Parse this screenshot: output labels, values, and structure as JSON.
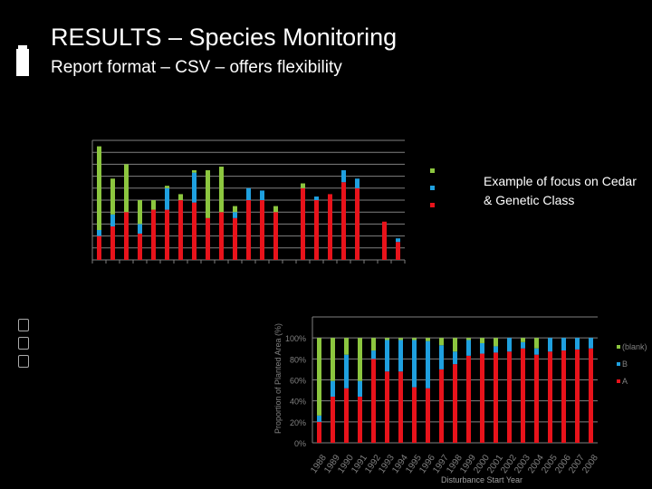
{
  "slide": {
    "title": "RESULTS – Species Monitoring",
    "subtitle": "Report format – CSV – offers flexibility",
    "focus_note": "Example of focus on Cedar & Genetic Class"
  },
  "colors": {
    "A": "#e8131b",
    "B": "#1fa0df",
    "blank": "#8cc63f",
    "grid": "#808080"
  },
  "chart_data": [
    {
      "type": "bar",
      "stacked": true,
      "title": "",
      "xlabel": "",
      "ylabel": "",
      "ylim": [
        0,
        100
      ],
      "grid": true,
      "legend": "right",
      "legend_labels_visible": false,
      "series": [
        {
          "name": "A",
          "values": [
            20,
            28,
            40,
            22,
            42,
            42,
            50,
            48,
            35,
            40,
            35,
            50,
            50,
            40,
            0,
            60,
            50,
            55,
            65,
            60,
            0,
            32,
            15
          ]
        },
        {
          "name": "B",
          "values": [
            5,
            10,
            0,
            8,
            0,
            18,
            0,
            25,
            0,
            0,
            5,
            10,
            8,
            0,
            0,
            0,
            3,
            0,
            10,
            8,
            0,
            0,
            3
          ]
        },
        {
          "name": "(blank)",
          "values": [
            70,
            30,
            40,
            20,
            8,
            2,
            5,
            2,
            40,
            38,
            5,
            0,
            0,
            5,
            0,
            4,
            0,
            0,
            0,
            0,
            0,
            0,
            0
          ]
        }
      ]
    },
    {
      "type": "bar",
      "stacked": true,
      "title": "",
      "xlabel": "Disturbance Start Year",
      "ylabel": "Proportion of Planted Area (%)",
      "ylim": [
        0,
        120
      ],
      "yticks": [
        "0%",
        "20%",
        "40%",
        "60%",
        "80%",
        "100%"
      ],
      "grid": true,
      "legend": "right",
      "categories": [
        "1988",
        "1989",
        "1990",
        "1991",
        "1992",
        "1993",
        "1994",
        "1995",
        "1996",
        "1997",
        "1998",
        "1999",
        "2000",
        "2001",
        "2002",
        "2003",
        "2004",
        "2005",
        "2006",
        "2007",
        "2008"
      ],
      "series": [
        {
          "name": "A",
          "values": [
            20,
            44,
            52,
            44,
            80,
            68,
            68,
            53,
            52,
            70,
            75,
            83,
            85,
            86,
            87,
            90,
            84,
            87,
            88,
            89,
            90
          ]
        },
        {
          "name": "B",
          "values": [
            6,
            15,
            32,
            15,
            8,
            30,
            30,
            45,
            45,
            23,
            12,
            15,
            10,
            6,
            13,
            6,
            6,
            13,
            12,
            11,
            10
          ]
        },
        {
          "name": "(blank)",
          "values": [
            74,
            41,
            16,
            41,
            12,
            2,
            2,
            2,
            3,
            7,
            13,
            2,
            5,
            8,
            0,
            4,
            10,
            0,
            0,
            0,
            0
          ]
        }
      ]
    }
  ]
}
